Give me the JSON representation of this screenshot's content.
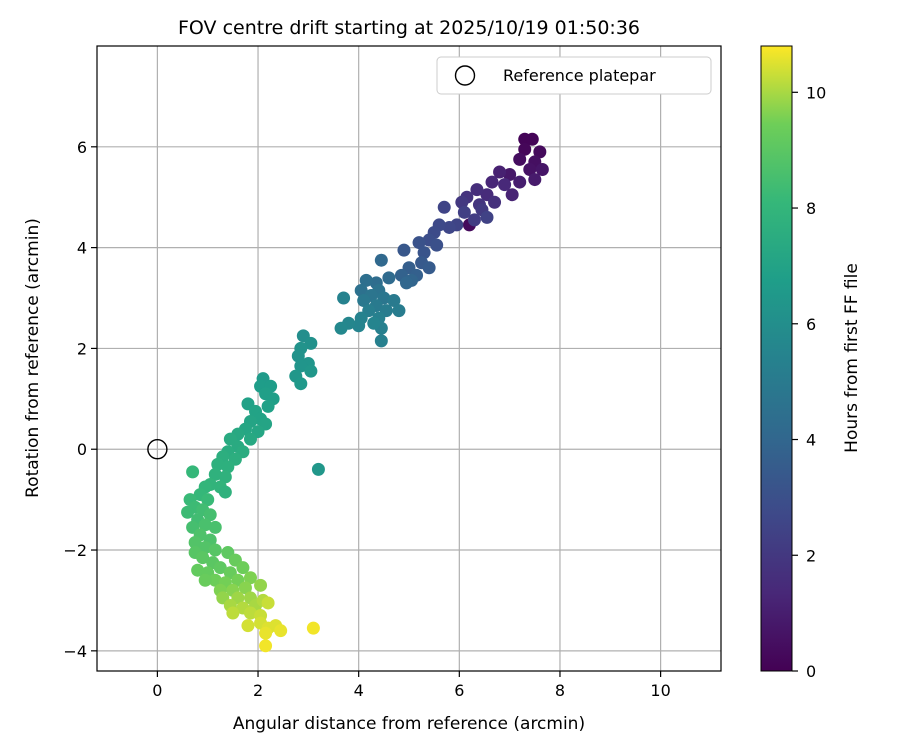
{
  "chart_data": {
    "type": "scatter",
    "title": "FOV centre drift starting at 2025/10/19 01:50:36",
    "xlabel": "Angular distance from reference (arcmin)",
    "ylabel": "Rotation from reference (arcmin)",
    "xlim": [
      -1.2,
      11.2
    ],
    "ylim": [
      -4.4,
      8.0
    ],
    "xticks": [
      0,
      2,
      4,
      6,
      8,
      10
    ],
    "yticks": [
      -4,
      -2,
      0,
      2,
      4,
      6
    ],
    "xtick_labels": [
      "0",
      "2",
      "4",
      "6",
      "8",
      "10"
    ],
    "ytick_labels": [
      "−4",
      "−2",
      "0",
      "2",
      "4",
      "6"
    ],
    "grid": true,
    "legend": {
      "location": "upper-right",
      "entries": [
        {
          "label": "Reference platepar",
          "marker": "open-circle"
        }
      ]
    },
    "reference_point": {
      "x": 0,
      "y": 0
    },
    "colorbar": {
      "label": "Hours from first FF file",
      "min": 0,
      "max": 10.8,
      "ticks": [
        0,
        2,
        4,
        6,
        8,
        10
      ],
      "tick_labels": [
        "0",
        "2",
        "4",
        "6",
        "8",
        "10"
      ],
      "colormap": "viridis"
    },
    "series": [
      {
        "name": "FOV centre drift",
        "color_by": "hours",
        "points": [
          {
            "x": 7.3,
            "y": 6.15,
            "c": 0.1
          },
          {
            "x": 7.45,
            "y": 6.15,
            "c": 0.1
          },
          {
            "x": 7.3,
            "y": 5.95,
            "c": 0.2
          },
          {
            "x": 7.6,
            "y": 5.9,
            "c": 0.3
          },
          {
            "x": 7.2,
            "y": 5.75,
            "c": 0.4
          },
          {
            "x": 7.5,
            "y": 5.7,
            "c": 0.5
          },
          {
            "x": 7.4,
            "y": 5.55,
            "c": 0.6
          },
          {
            "x": 7.65,
            "y": 5.55,
            "c": 0.7
          },
          {
            "x": 7.0,
            "y": 5.45,
            "c": 0.8
          },
          {
            "x": 7.5,
            "y": 5.35,
            "c": 0.9
          },
          {
            "x": 7.2,
            "y": 5.3,
            "c": 1.0
          },
          {
            "x": 6.8,
            "y": 5.5,
            "c": 1.1
          },
          {
            "x": 7.05,
            "y": 5.05,
            "c": 1.2
          },
          {
            "x": 6.65,
            "y": 5.3,
            "c": 1.3
          },
          {
            "x": 6.9,
            "y": 5.25,
            "c": 1.4
          },
          {
            "x": 6.55,
            "y": 5.05,
            "c": 1.5
          },
          {
            "x": 6.35,
            "y": 5.15,
            "c": 1.6
          },
          {
            "x": 6.7,
            "y": 4.9,
            "c": 1.7
          },
          {
            "x": 6.15,
            "y": 5.0,
            "c": 1.8
          },
          {
            "x": 6.4,
            "y": 4.85,
            "c": 1.9
          },
          {
            "x": 6.2,
            "y": 4.45,
            "c": 0.3
          },
          {
            "x": 6.05,
            "y": 4.9,
            "c": 2.0
          },
          {
            "x": 6.45,
            "y": 4.75,
            "c": 2.1
          },
          {
            "x": 6.3,
            "y": 4.55,
            "c": 2.2
          },
          {
            "x": 6.1,
            "y": 4.7,
            "c": 2.3
          },
          {
            "x": 6.55,
            "y": 4.6,
            "c": 2.4
          },
          {
            "x": 5.95,
            "y": 4.45,
            "c": 2.5
          },
          {
            "x": 5.7,
            "y": 4.8,
            "c": 2.5
          },
          {
            "x": 5.8,
            "y": 4.4,
            "c": 2.6
          },
          {
            "x": 5.6,
            "y": 4.45,
            "c": 2.7
          },
          {
            "x": 5.5,
            "y": 4.3,
            "c": 2.8
          },
          {
            "x": 5.4,
            "y": 4.15,
            "c": 2.9
          },
          {
            "x": 5.55,
            "y": 4.05,
            "c": 3.0
          },
          {
            "x": 5.2,
            "y": 4.1,
            "c": 3.1
          },
          {
            "x": 5.3,
            "y": 3.9,
            "c": 3.2
          },
          {
            "x": 4.9,
            "y": 3.95,
            "c": 3.3
          },
          {
            "x": 5.25,
            "y": 3.7,
            "c": 3.4
          },
          {
            "x": 5.4,
            "y": 3.6,
            "c": 3.5
          },
          {
            "x": 5.0,
            "y": 3.6,
            "c": 3.6
          },
          {
            "x": 5.15,
            "y": 3.45,
            "c": 3.7
          },
          {
            "x": 4.85,
            "y": 3.45,
            "c": 3.8
          },
          {
            "x": 5.05,
            "y": 3.35,
            "c": 3.9
          },
          {
            "x": 4.95,
            "y": 3.3,
            "c": 4.0
          },
          {
            "x": 4.45,
            "y": 3.75,
            "c": 4.1
          },
          {
            "x": 4.6,
            "y": 3.4,
            "c": 4.2
          },
          {
            "x": 4.35,
            "y": 3.3,
            "c": 4.3
          },
          {
            "x": 4.15,
            "y": 3.35,
            "c": 4.4
          },
          {
            "x": 4.05,
            "y": 3.15,
            "c": 4.5
          },
          {
            "x": 4.4,
            "y": 3.15,
            "c": 4.6
          },
          {
            "x": 4.25,
            "y": 3.05,
            "c": 4.7
          },
          {
            "x": 4.5,
            "y": 3.0,
            "c": 4.8
          },
          {
            "x": 4.1,
            "y": 2.95,
            "c": 4.9
          },
          {
            "x": 4.35,
            "y": 2.85,
            "c": 5.0
          },
          {
            "x": 4.7,
            "y": 2.95,
            "c": 5.0
          },
          {
            "x": 4.55,
            "y": 2.75,
            "c": 5.1
          },
          {
            "x": 4.2,
            "y": 2.75,
            "c": 5.2
          },
          {
            "x": 4.4,
            "y": 2.6,
            "c": 5.3
          },
          {
            "x": 4.8,
            "y": 2.75,
            "c": 5.1
          },
          {
            "x": 4.05,
            "y": 2.6,
            "c": 5.4
          },
          {
            "x": 3.7,
            "y": 3.0,
            "c": 5.4
          },
          {
            "x": 4.0,
            "y": 2.45,
            "c": 5.5
          },
          {
            "x": 3.8,
            "y": 2.5,
            "c": 5.6
          },
          {
            "x": 3.65,
            "y": 2.4,
            "c": 5.7
          },
          {
            "x": 4.45,
            "y": 2.4,
            "c": 5.3
          },
          {
            "x": 4.3,
            "y": 2.5,
            "c": 5.5
          },
          {
            "x": 4.45,
            "y": 2.15,
            "c": 5.3
          },
          {
            "x": 2.9,
            "y": 2.25,
            "c": 6.0
          },
          {
            "x": 3.05,
            "y": 2.1,
            "c": 6.1
          },
          {
            "x": 2.85,
            "y": 2.0,
            "c": 6.2
          },
          {
            "x": 2.8,
            "y": 1.85,
            "c": 6.2
          },
          {
            "x": 3.0,
            "y": 1.7,
            "c": 6.3
          },
          {
            "x": 2.85,
            "y": 1.65,
            "c": 6.3
          },
          {
            "x": 3.05,
            "y": 1.55,
            "c": 6.4
          },
          {
            "x": 2.75,
            "y": 1.45,
            "c": 6.4
          },
          {
            "x": 2.85,
            "y": 1.3,
            "c": 6.5
          },
          {
            "x": 3.2,
            "y": -0.4,
            "c": 6.4
          },
          {
            "x": 2.1,
            "y": 1.4,
            "c": 6.6
          },
          {
            "x": 2.05,
            "y": 1.25,
            "c": 6.7
          },
          {
            "x": 2.25,
            "y": 1.25,
            "c": 6.7
          },
          {
            "x": 2.15,
            "y": 1.1,
            "c": 6.8
          },
          {
            "x": 2.3,
            "y": 1.0,
            "c": 6.8
          },
          {
            "x": 2.2,
            "y": 0.85,
            "c": 6.9
          },
          {
            "x": 1.8,
            "y": 0.9,
            "c": 6.9
          },
          {
            "x": 1.95,
            "y": 0.75,
            "c": 7.0
          },
          {
            "x": 2.05,
            "y": 0.6,
            "c": 7.0
          },
          {
            "x": 2.15,
            "y": 0.5,
            "c": 7.1
          },
          {
            "x": 1.85,
            "y": 0.55,
            "c": 7.1
          },
          {
            "x": 1.75,
            "y": 0.4,
            "c": 7.2
          },
          {
            "x": 2.0,
            "y": 0.35,
            "c": 7.2
          },
          {
            "x": 1.6,
            "y": 0.3,
            "c": 7.3
          },
          {
            "x": 1.85,
            "y": 0.2,
            "c": 7.3
          },
          {
            "x": 1.45,
            "y": 0.2,
            "c": 7.4
          },
          {
            "x": 1.6,
            "y": 0.05,
            "c": 7.4
          },
          {
            "x": 1.4,
            "y": -0.05,
            "c": 7.5
          },
          {
            "x": 1.7,
            "y": -0.05,
            "c": 7.5
          },
          {
            "x": 1.3,
            "y": -0.15,
            "c": 7.6
          },
          {
            "x": 1.55,
            "y": -0.2,
            "c": 7.6
          },
          {
            "x": 1.2,
            "y": -0.3,
            "c": 7.7
          },
          {
            "x": 1.4,
            "y": -0.35,
            "c": 7.7
          },
          {
            "x": 1.15,
            "y": -0.5,
            "c": 7.8
          },
          {
            "x": 1.35,
            "y": -0.55,
            "c": 7.8
          },
          {
            "x": 1.05,
            "y": -0.7,
            "c": 7.9
          },
          {
            "x": 1.25,
            "y": -0.75,
            "c": 7.9
          },
          {
            "x": 1.35,
            "y": -0.85,
            "c": 7.8
          },
          {
            "x": 0.95,
            "y": -0.75,
            "c": 8.0
          },
          {
            "x": 0.7,
            "y": -0.45,
            "c": 8.1
          },
          {
            "x": 0.85,
            "y": -0.9,
            "c": 8.1
          },
          {
            "x": 1.0,
            "y": -1.0,
            "c": 8.2
          },
          {
            "x": 0.65,
            "y": -1.0,
            "c": 8.2
          },
          {
            "x": 0.75,
            "y": -1.15,
            "c": 8.3
          },
          {
            "x": 0.6,
            "y": -1.25,
            "c": 8.3
          },
          {
            "x": 0.9,
            "y": -1.2,
            "c": 8.4
          },
          {
            "x": 0.8,
            "y": -1.4,
            "c": 8.4
          },
          {
            "x": 1.05,
            "y": -1.3,
            "c": 8.5
          },
          {
            "x": 0.7,
            "y": -1.55,
            "c": 8.5
          },
          {
            "x": 0.95,
            "y": -1.5,
            "c": 8.6
          },
          {
            "x": 1.15,
            "y": -1.55,
            "c": 8.6
          },
          {
            "x": 0.85,
            "y": -1.7,
            "c": 8.7
          },
          {
            "x": 1.05,
            "y": -1.8,
            "c": 8.7
          },
          {
            "x": 0.75,
            "y": -1.85,
            "c": 8.8
          },
          {
            "x": 0.95,
            "y": -1.95,
            "c": 8.8
          },
          {
            "x": 0.75,
            "y": -2.05,
            "c": 8.9
          },
          {
            "x": 1.15,
            "y": -2.0,
            "c": 8.9
          },
          {
            "x": 0.9,
            "y": -2.15,
            "c": 9.0
          },
          {
            "x": 1.1,
            "y": -2.25,
            "c": 9.0
          },
          {
            "x": 1.4,
            "y": -2.05,
            "c": 9.1
          },
          {
            "x": 1.25,
            "y": -2.35,
            "c": 9.1
          },
          {
            "x": 0.8,
            "y": -2.4,
            "c": 9.2
          },
          {
            "x": 1.0,
            "y": -2.45,
            "c": 9.2
          },
          {
            "x": 1.55,
            "y": -2.2,
            "c": 9.3
          },
          {
            "x": 1.45,
            "y": -2.45,
            "c": 9.3
          },
          {
            "x": 1.7,
            "y": -2.35,
            "c": 9.4
          },
          {
            "x": 1.15,
            "y": -2.6,
            "c": 9.4
          },
          {
            "x": 0.95,
            "y": -2.6,
            "c": 9.3
          },
          {
            "x": 1.35,
            "y": -2.65,
            "c": 9.5
          },
          {
            "x": 1.6,
            "y": -2.6,
            "c": 9.5
          },
          {
            "x": 1.85,
            "y": -2.55,
            "c": 9.6
          },
          {
            "x": 1.25,
            "y": -2.8,
            "c": 9.6
          },
          {
            "x": 1.5,
            "y": -2.8,
            "c": 9.7
          },
          {
            "x": 1.75,
            "y": -2.75,
            "c": 9.7
          },
          {
            "x": 2.05,
            "y": -2.7,
            "c": 9.8
          },
          {
            "x": 1.3,
            "y": -2.95,
            "c": 9.8
          },
          {
            "x": 1.6,
            "y": -2.95,
            "c": 9.9
          },
          {
            "x": 1.85,
            "y": -2.95,
            "c": 9.9
          },
          {
            "x": 1.45,
            "y": -3.1,
            "c": 10.0
          },
          {
            "x": 1.95,
            "y": -3.1,
            "c": 10.0
          },
          {
            "x": 1.7,
            "y": -3.15,
            "c": 10.1
          },
          {
            "x": 2.1,
            "y": -3.0,
            "c": 10.1
          },
          {
            "x": 1.5,
            "y": -3.25,
            "c": 10.2
          },
          {
            "x": 1.85,
            "y": -3.25,
            "c": 10.2
          },
          {
            "x": 2.05,
            "y": -3.3,
            "c": 10.3
          },
          {
            "x": 2.2,
            "y": -3.05,
            "c": 10.3
          },
          {
            "x": 1.8,
            "y": -3.5,
            "c": 10.4
          },
          {
            "x": 2.05,
            "y": -3.45,
            "c": 10.4
          },
          {
            "x": 2.2,
            "y": -3.55,
            "c": 10.5
          },
          {
            "x": 2.35,
            "y": -3.5,
            "c": 10.5
          },
          {
            "x": 2.15,
            "y": -3.65,
            "c": 10.6
          },
          {
            "x": 2.45,
            "y": -3.6,
            "c": 10.6
          },
          {
            "x": 2.15,
            "y": -3.9,
            "c": 10.7
          },
          {
            "x": 3.1,
            "y": -3.55,
            "c": 10.7
          }
        ]
      }
    ]
  }
}
